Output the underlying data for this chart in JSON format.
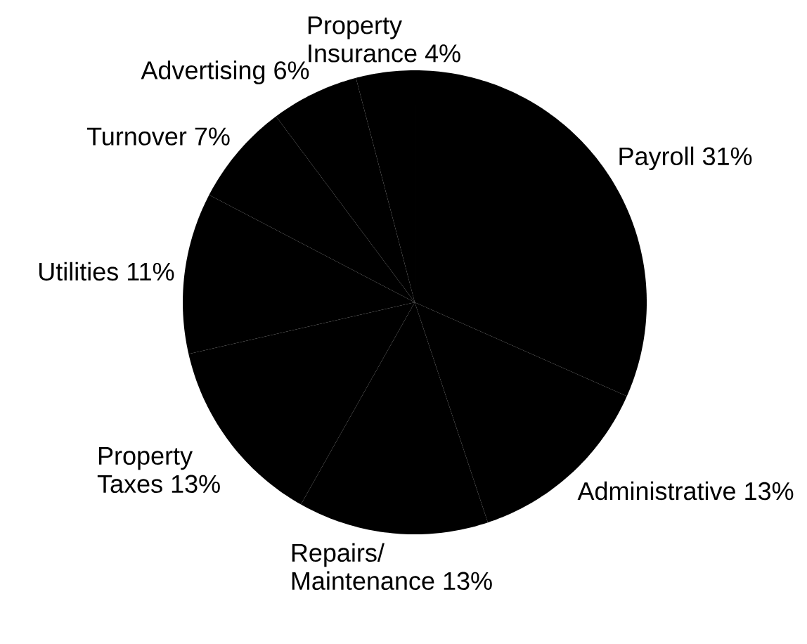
{
  "chart_data": {
    "type": "pie",
    "categories": [
      "Payroll",
      "Administrative",
      "Repairs/ Maintenance",
      "Property Taxes",
      "Utilities",
      "Turnover",
      "Advertising",
      "Property Insurance"
    ],
    "values": [
      31,
      13,
      13,
      13,
      11,
      7,
      6,
      4
    ],
    "value_labels": [
      "31%",
      "13%",
      "13%",
      "13%",
      "11%",
      "7%",
      "6%",
      "4%"
    ],
    "colors": [
      "#000000",
      "#000000",
      "#000000",
      "#000000",
      "#000000",
      "#000000",
      "#000000",
      "#000000"
    ]
  }
}
